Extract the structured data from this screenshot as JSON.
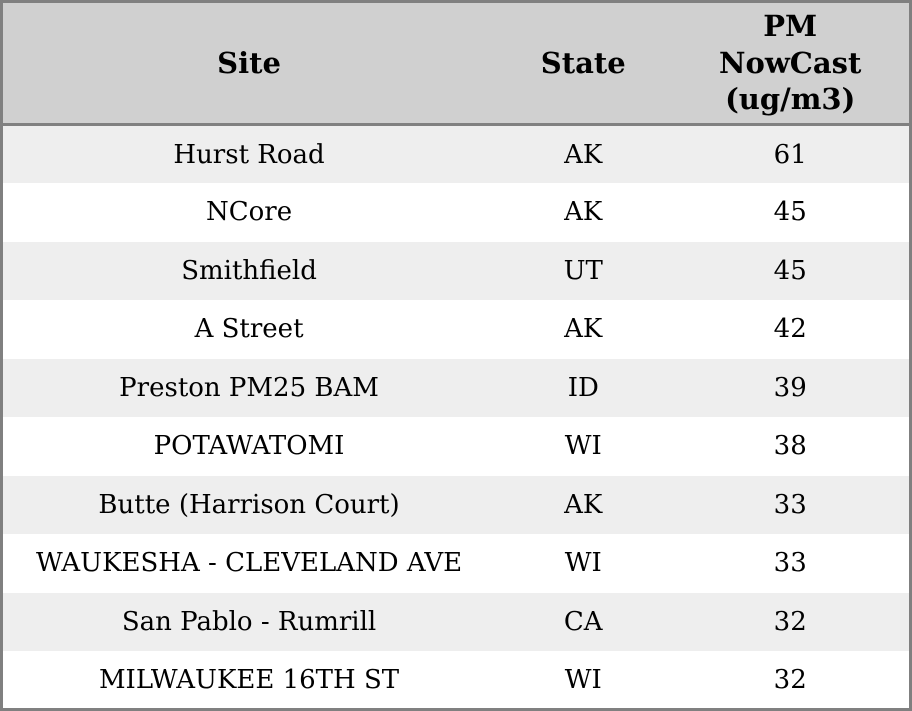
{
  "title": "PM NowCast site readings table",
  "colors": {
    "outer_border": "#808080",
    "header_divider": "#808080",
    "header_bg": "#d0d0d0",
    "row_alt_bg": "#eeeeee",
    "row_bg": "#ffffff",
    "text": "#000000"
  },
  "chart_data": {
    "type": "table",
    "columns": [
      "Site",
      "State",
      "PM NowCast (ug/m3)"
    ],
    "rows": [
      [
        "Hurst Road",
        "AK",
        61
      ],
      [
        "NCore",
        "AK",
        45
      ],
      [
        "Smithfield",
        "UT",
        45
      ],
      [
        "A Street",
        "AK",
        42
      ],
      [
        "Preston PM25 BAM",
        "ID",
        39
      ],
      [
        "POTAWATOMI",
        "WI",
        38
      ],
      [
        "Butte (Harrison Court)",
        "AK",
        33
      ],
      [
        "WAUKESHA - CLEVELAND AVE",
        "WI",
        33
      ],
      [
        "San Pablo - Rumrill",
        "CA",
        32
      ],
      [
        "MILWAUKEE 16TH ST",
        "WI",
        32
      ]
    ],
    "layout": {
      "grid": "horizontal row stripes only",
      "striping": "odd rows #eeeeee, even rows #ffffff",
      "alignment": "all cells centered",
      "sort": "PM NowCast descending"
    }
  }
}
